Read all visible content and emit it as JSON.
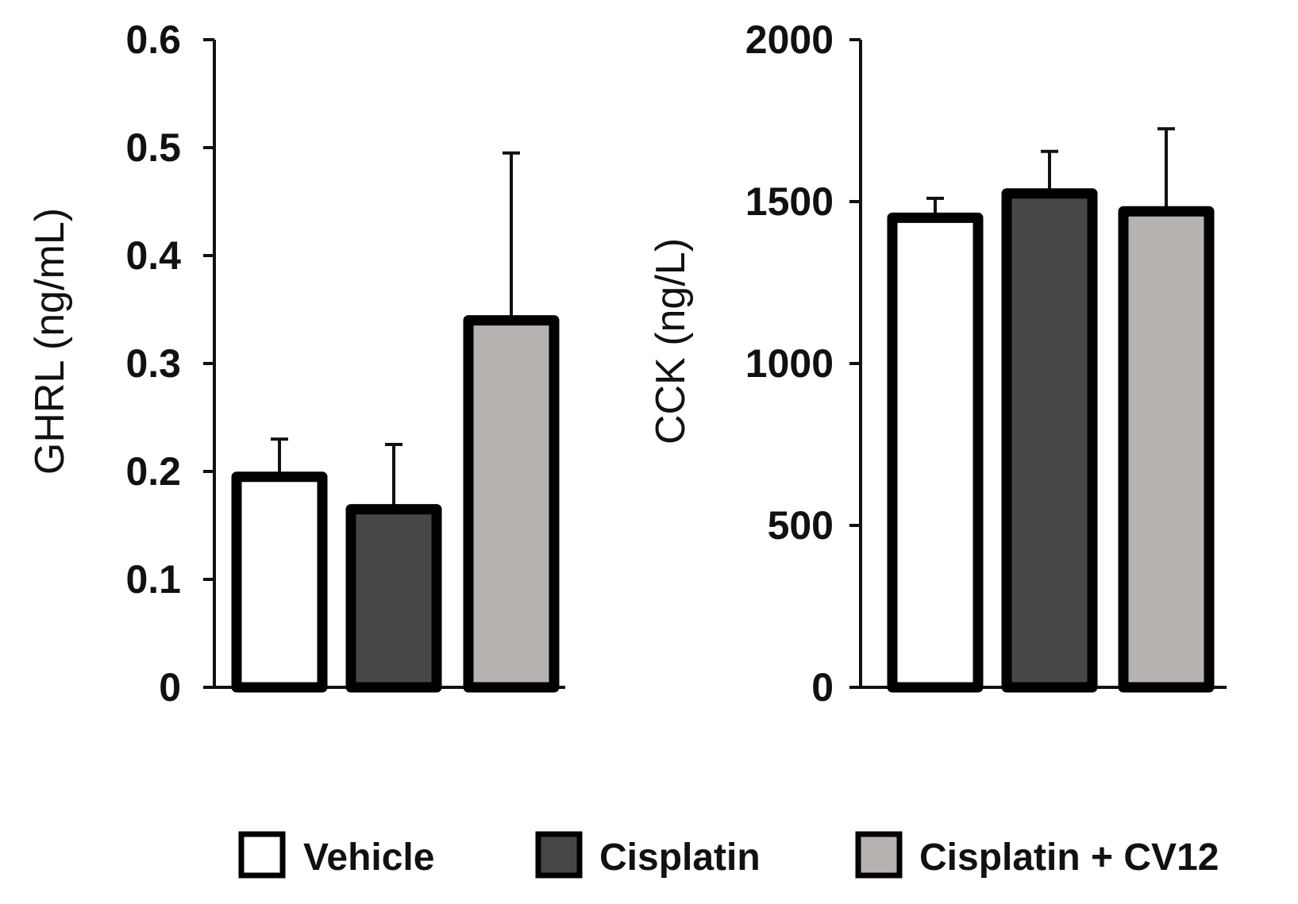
{
  "chart_data": [
    {
      "type": "bar",
      "title": "",
      "xlabel": "",
      "ylabel": "GHRL (ng/mL)",
      "ylim": [
        0,
        0.6
      ],
      "yticks": [
        0,
        0.1,
        0.2,
        0.3,
        0.4,
        0.5,
        0.6
      ],
      "ytick_labels": [
        "0",
        "0.1",
        "0.2",
        "0.3",
        "0.4",
        "0.5",
        "0.6"
      ],
      "categories": [
        "Vehicle",
        "Cisplatin",
        "Cisplatin + CV12"
      ],
      "values": [
        0.195,
        0.165,
        0.34
      ],
      "error_upper": [
        0.035,
        0.06,
        0.155
      ],
      "colors": [
        "#ffffff",
        "#474747",
        "#b7b2af"
      ],
      "grid": false
    },
    {
      "type": "bar",
      "title": "",
      "xlabel": "",
      "ylabel": "CCK (ng/L)",
      "ylim": [
        0,
        2000
      ],
      "yticks": [
        0,
        500,
        1000,
        1500,
        2000
      ],
      "ytick_labels": [
        "0",
        "500",
        "1000",
        "1500",
        "2000"
      ],
      "categories": [
        "Vehicle",
        "Cisplatin",
        "Cisplatin + CV12"
      ],
      "values": [
        1450,
        1525,
        1470
      ],
      "error_upper": [
        60,
        130,
        255
      ],
      "colors": [
        "#ffffff",
        "#474747",
        "#b7b2af"
      ],
      "grid": false
    }
  ],
  "legend": {
    "position": "bottom",
    "items": [
      {
        "label": "Vehicle",
        "color": "#ffffff"
      },
      {
        "label": "Cisplatin",
        "color": "#474747"
      },
      {
        "label": "Cisplatin + CV12",
        "color": "#b7b2af"
      }
    ]
  }
}
